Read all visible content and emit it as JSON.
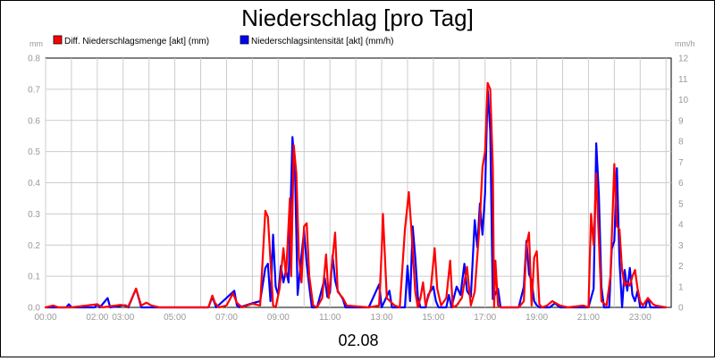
{
  "chart_data": {
    "type": "line",
    "title": "Niederschlag [pro Tag]",
    "xlabel": "02.08",
    "y_left_unit": "mm",
    "y_right_unit": "mm/h",
    "y_left_lim": [
      0,
      0.8
    ],
    "y_right_lim": [
      0,
      12
    ],
    "y_left_ticks": [
      "0.0",
      "0.1",
      "0.2",
      "0.3",
      "0.4",
      "0.5",
      "0.6",
      "0.7",
      "0.8"
    ],
    "y_right_ticks": [
      "0",
      "1",
      "2",
      "3",
      "4",
      "5",
      "6",
      "7",
      "8",
      "9",
      "10",
      "11",
      "12"
    ],
    "x_lim_hours": [
      0,
      24.2
    ],
    "x_ticks": [
      {
        "h": 0,
        "label": "00:00"
      },
      {
        "h": 2,
        "label": "02:00"
      },
      {
        "h": 3,
        "label": "03:00"
      },
      {
        "h": 5,
        "label": "05:00"
      },
      {
        "h": 7,
        "label": "07:00"
      },
      {
        "h": 9,
        "label": "09:00"
      },
      {
        "h": 11,
        "label": "11:00"
      },
      {
        "h": 13,
        "label": "13:00"
      },
      {
        "h": 15,
        "label": "15:00"
      },
      {
        "h": 17,
        "label": "17:00"
      },
      {
        "h": 19,
        "label": "19:00"
      },
      {
        "h": 21,
        "label": "21:00"
      },
      {
        "h": 23,
        "label": "23:00"
      }
    ],
    "grid": true,
    "legend_placement": "top-left",
    "series": [
      {
        "name": "Diff. Niederschlagsmenge [akt] (mm)",
        "color": "#ff0000",
        "axis": "left",
        "points": [
          [
            0.0,
            0.0
          ],
          [
            0.3,
            0.006
          ],
          [
            0.5,
            0.0
          ],
          [
            1.0,
            0.0
          ],
          [
            2.0,
            0.01
          ],
          [
            2.2,
            0.0
          ],
          [
            2.9,
            0.008
          ],
          [
            3.2,
            0.003
          ],
          [
            3.5,
            0.06
          ],
          [
            3.7,
            0.006
          ],
          [
            3.9,
            0.015
          ],
          [
            4.1,
            0.006
          ],
          [
            4.4,
            0.0
          ],
          [
            6.3,
            0.0
          ],
          [
            6.45,
            0.038
          ],
          [
            6.55,
            0.015
          ],
          [
            6.7,
            0.0
          ],
          [
            7.0,
            0.006
          ],
          [
            7.25,
            0.045
          ],
          [
            7.4,
            0.015
          ],
          [
            7.6,
            0.0
          ],
          [
            8.0,
            0.012
          ],
          [
            8.3,
            0.006
          ],
          [
            8.5,
            0.31
          ],
          [
            8.6,
            0.29
          ],
          [
            8.8,
            0.006
          ],
          [
            8.9,
            0.0
          ],
          [
            9.05,
            0.06
          ],
          [
            9.2,
            0.19
          ],
          [
            9.3,
            0.1
          ],
          [
            9.45,
            0.35
          ],
          [
            9.5,
            0.1
          ],
          [
            9.6,
            0.52
          ],
          [
            9.7,
            0.43
          ],
          [
            9.8,
            0.16
          ],
          [
            9.9,
            0.08
          ],
          [
            10.0,
            0.26
          ],
          [
            10.1,
            0.27
          ],
          [
            10.2,
            0.1
          ],
          [
            10.35,
            0.006
          ],
          [
            10.5,
            0.0
          ],
          [
            10.7,
            0.03
          ],
          [
            10.85,
            0.17
          ],
          [
            10.95,
            0.03
          ],
          [
            11.2,
            0.24
          ],
          [
            11.3,
            0.05
          ],
          [
            11.5,
            0.03
          ],
          [
            11.65,
            0.006
          ],
          [
            12.5,
            0.0
          ],
          [
            12.9,
            0.006
          ],
          [
            13.0,
            0.18
          ],
          [
            13.05,
            0.3
          ],
          [
            13.2,
            0.03
          ],
          [
            13.5,
            0.006
          ],
          [
            13.7,
            0.0
          ],
          [
            13.9,
            0.25
          ],
          [
            14.05,
            0.37
          ],
          [
            14.15,
            0.25
          ],
          [
            14.3,
            0.05
          ],
          [
            14.4,
            0.0
          ],
          [
            14.5,
            0.03
          ],
          [
            14.6,
            0.08
          ],
          [
            14.7,
            0.006
          ],
          [
            14.9,
            0.06
          ],
          [
            15.05,
            0.19
          ],
          [
            15.15,
            0.06
          ],
          [
            15.3,
            0.006
          ],
          [
            15.5,
            0.03
          ],
          [
            15.65,
            0.15
          ],
          [
            15.75,
            0.0
          ],
          [
            15.9,
            0.006
          ],
          [
            16.1,
            0.03
          ],
          [
            16.3,
            0.13
          ],
          [
            16.45,
            0.006
          ],
          [
            16.6,
            0.05
          ],
          [
            16.8,
            0.28
          ],
          [
            16.9,
            0.45
          ],
          [
            17.0,
            0.5
          ],
          [
            17.1,
            0.72
          ],
          [
            17.2,
            0.7
          ],
          [
            17.3,
            0.45
          ],
          [
            17.35,
            0.0
          ],
          [
            17.4,
            0.15
          ],
          [
            17.5,
            0.006
          ],
          [
            17.6,
            0.0
          ],
          [
            18.3,
            0.0
          ],
          [
            18.5,
            0.02
          ],
          [
            18.6,
            0.2
          ],
          [
            18.7,
            0.24
          ],
          [
            18.8,
            0.006
          ],
          [
            18.9,
            0.16
          ],
          [
            19.0,
            0.18
          ],
          [
            19.1,
            0.01
          ],
          [
            19.2,
            0.0
          ],
          [
            19.4,
            0.006
          ],
          [
            19.6,
            0.02
          ],
          [
            19.9,
            0.006
          ],
          [
            20.2,
            0.0
          ],
          [
            20.8,
            0.006
          ],
          [
            21.0,
            0.0
          ],
          [
            21.1,
            0.3
          ],
          [
            21.2,
            0.2
          ],
          [
            21.3,
            0.43
          ],
          [
            21.4,
            0.22
          ],
          [
            21.5,
            0.02
          ],
          [
            21.7,
            0.006
          ],
          [
            21.85,
            0.1
          ],
          [
            22.0,
            0.46
          ],
          [
            22.1,
            0.26
          ],
          [
            22.2,
            0.25
          ],
          [
            22.3,
            0.12
          ],
          [
            22.4,
            0.07
          ],
          [
            22.5,
            0.08
          ],
          [
            22.6,
            0.07
          ],
          [
            22.7,
            0.1
          ],
          [
            22.8,
            0.12
          ],
          [
            22.9,
            0.06
          ],
          [
            23.0,
            0.02
          ],
          [
            23.1,
            0.006
          ],
          [
            23.3,
            0.03
          ],
          [
            23.5,
            0.01
          ],
          [
            23.6,
            0.006
          ],
          [
            24.0,
            0.0
          ]
        ]
      },
      {
        "name": "Niederschlagsintensität [akt] (mm/h)",
        "color": "#0000ff",
        "axis": "right",
        "points": [
          [
            0.0,
            0.0
          ],
          [
            0.8,
            0.0
          ],
          [
            0.9,
            0.15
          ],
          [
            1.0,
            0.0
          ],
          [
            1.9,
            0.0
          ],
          [
            2.0,
            0.15
          ],
          [
            2.1,
            0.0
          ],
          [
            2.4,
            0.45
          ],
          [
            2.5,
            0.0
          ],
          [
            3.0,
            0.1
          ],
          [
            3.1,
            0.1
          ],
          [
            3.2,
            0.0
          ],
          [
            3.5,
            0.9
          ],
          [
            3.7,
            0.0
          ],
          [
            4.2,
            0.0
          ],
          [
            6.3,
            0.0
          ],
          [
            6.45,
            0.5
          ],
          [
            6.6,
            0.0
          ],
          [
            7.3,
            0.8
          ],
          [
            7.4,
            0.1
          ],
          [
            7.5,
            0.0
          ],
          [
            8.0,
            0.2
          ],
          [
            8.3,
            0.3
          ],
          [
            8.5,
            1.9
          ],
          [
            8.6,
            2.1
          ],
          [
            8.7,
            0.3
          ],
          [
            8.8,
            3.5
          ],
          [
            8.9,
            1.0
          ],
          [
            9.0,
            0.6
          ],
          [
            9.1,
            2.0
          ],
          [
            9.2,
            1.2
          ],
          [
            9.3,
            1.8
          ],
          [
            9.4,
            1.2
          ],
          [
            9.55,
            8.2
          ],
          [
            9.65,
            6.5
          ],
          [
            9.75,
            0.6
          ],
          [
            9.9,
            2.5
          ],
          [
            10.0,
            3.7
          ],
          [
            10.1,
            2.1
          ],
          [
            10.2,
            1.0
          ],
          [
            10.3,
            0.0
          ],
          [
            10.5,
            0.0
          ],
          [
            10.8,
            1.4
          ],
          [
            10.9,
            0.5
          ],
          [
            11.0,
            0.7
          ],
          [
            11.1,
            2.5
          ],
          [
            11.2,
            1.3
          ],
          [
            11.3,
            0.8
          ],
          [
            11.5,
            0.4
          ],
          [
            11.6,
            0.0
          ],
          [
            12.5,
            0.0
          ],
          [
            12.9,
            1.1
          ],
          [
            13.0,
            0.0
          ],
          [
            13.3,
            0.8
          ],
          [
            13.4,
            0.0
          ],
          [
            13.9,
            0.0
          ],
          [
            14.0,
            2.0
          ],
          [
            14.1,
            0.3
          ],
          [
            14.2,
            3.9
          ],
          [
            14.3,
            2.4
          ],
          [
            14.4,
            0.5
          ],
          [
            14.5,
            0.0
          ],
          [
            14.7,
            0.0
          ],
          [
            14.8,
            0.6
          ],
          [
            15.0,
            1.0
          ],
          [
            15.1,
            0.3
          ],
          [
            15.2,
            0.0
          ],
          [
            15.5,
            0.0
          ],
          [
            15.6,
            0.6
          ],
          [
            15.7,
            0.0
          ],
          [
            15.9,
            1.0
          ],
          [
            16.05,
            0.6
          ],
          [
            16.2,
            2.1
          ],
          [
            16.3,
            0.8
          ],
          [
            16.45,
            0.5
          ],
          [
            16.6,
            4.2
          ],
          [
            16.7,
            2.9
          ],
          [
            16.8,
            5.0
          ],
          [
            16.9,
            3.5
          ],
          [
            17.0,
            5.5
          ],
          [
            17.1,
            10.5
          ],
          [
            17.2,
            8.5
          ],
          [
            17.3,
            0.4
          ],
          [
            17.5,
            0.9
          ],
          [
            17.6,
            0.0
          ],
          [
            17.8,
            0.0
          ],
          [
            18.3,
            0.0
          ],
          [
            18.5,
            1.0
          ],
          [
            18.6,
            3.2
          ],
          [
            18.7,
            1.6
          ],
          [
            18.8,
            1.3
          ],
          [
            18.9,
            0.3
          ],
          [
            19.0,
            0.1
          ],
          [
            19.1,
            0.0
          ],
          [
            19.5,
            0.0
          ],
          [
            19.7,
            0.2
          ],
          [
            19.9,
            0.0
          ],
          [
            20.5,
            0.0
          ],
          [
            21.0,
            0.0
          ],
          [
            21.2,
            0.9
          ],
          [
            21.3,
            7.9
          ],
          [
            21.4,
            5.5
          ],
          [
            21.5,
            1.0
          ],
          [
            21.6,
            0.0
          ],
          [
            21.8,
            0.0
          ],
          [
            21.9,
            2.8
          ],
          [
            22.0,
            3.2
          ],
          [
            22.1,
            6.7
          ],
          [
            22.2,
            2.2
          ],
          [
            22.3,
            0.0
          ],
          [
            22.4,
            1.8
          ],
          [
            22.5,
            0.8
          ],
          [
            22.6,
            1.9
          ],
          [
            22.7,
            0.6
          ],
          [
            22.8,
            0.3
          ],
          [
            22.9,
            0.8
          ],
          [
            23.0,
            0.0
          ],
          [
            23.2,
            0.0
          ],
          [
            23.3,
            0.45
          ],
          [
            23.4,
            0.0
          ],
          [
            24.0,
            0.0
          ]
        ]
      }
    ]
  }
}
